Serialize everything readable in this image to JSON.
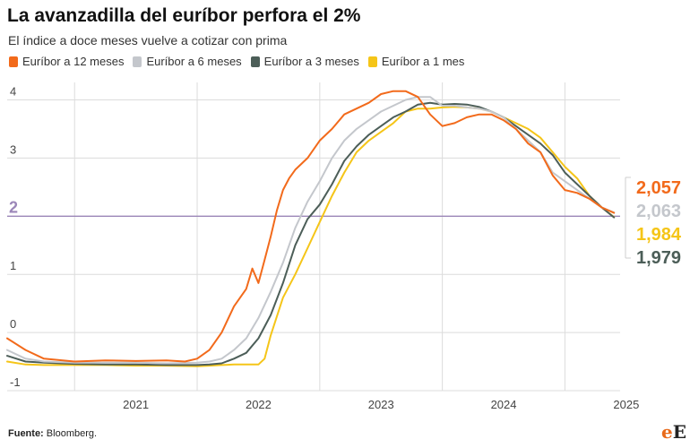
{
  "header": {
    "title": "La avanzadilla del euríbor perfora el 2%",
    "subtitle": "El índice a doce meses vuelve a cotizar con prima"
  },
  "footer": {
    "source_label": "Fuente:",
    "source_value": "Bloomberg.",
    "logo_e": "e",
    "logo_E": "E"
  },
  "colors": {
    "12m": "#f26a1b",
    "6m": "#c4c7cc",
    "3m": "#4c5e58",
    "1m": "#f5c518",
    "reference": "#9b86b8",
    "grid": "#dcdcdc"
  },
  "chart_data": {
    "type": "line",
    "title": "La avanzadilla del euríbor perfora el 2%",
    "subtitle": "El índice a doce meses vuelve a cotizar con prima",
    "xlabel": "",
    "ylabel": "",
    "xlim": [
      2020.45,
      2025.45
    ],
    "ylim": [
      -1,
      4.3
    ],
    "x_ticks": [
      "2021",
      "2022",
      "2023",
      "2024",
      "2025"
    ],
    "y_ticks": [
      "-1",
      "0",
      "1",
      "3",
      "4"
    ],
    "grid": true,
    "legend": "top-left",
    "reference_line": {
      "value": 2,
      "label": "2"
    },
    "end_labels": [
      {
        "series": "Euríbor a 12 meses",
        "label": "2,057"
      },
      {
        "series": "Euríbor a 6 meses",
        "label": "2,063"
      },
      {
        "series": "Euríbor a 1 mes",
        "label": "1,984"
      },
      {
        "series": "Euríbor a 3 meses",
        "label": "1,979"
      }
    ],
    "series": [
      {
        "name": "Euríbor a 12 meses",
        "key": "12m",
        "x": [
          2020.45,
          2020.6,
          2020.75,
          2021.0,
          2021.25,
          2021.5,
          2021.75,
          2021.9,
          2022.0,
          2022.1,
          2022.2,
          2022.3,
          2022.4,
          2022.45,
          2022.5,
          2022.55,
          2022.6,
          2022.65,
          2022.7,
          2022.75,
          2022.8,
          2022.9,
          2023.0,
          2023.1,
          2023.2,
          2023.3,
          2023.4,
          2023.5,
          2023.6,
          2023.7,
          2023.8,
          2023.9,
          2024.0,
          2024.1,
          2024.2,
          2024.3,
          2024.4,
          2024.5,
          2024.6,
          2024.7,
          2024.8,
          2024.9,
          2025.0,
          2025.1,
          2025.2,
          2025.3,
          2025.4
        ],
        "y": [
          -0.1,
          -0.3,
          -0.45,
          -0.5,
          -0.48,
          -0.49,
          -0.48,
          -0.5,
          -0.45,
          -0.3,
          0.0,
          0.45,
          0.75,
          1.1,
          0.85,
          1.25,
          1.65,
          2.1,
          2.45,
          2.65,
          2.8,
          3.0,
          3.3,
          3.5,
          3.75,
          3.85,
          3.95,
          4.1,
          4.15,
          4.15,
          4.05,
          3.75,
          3.55,
          3.6,
          3.7,
          3.75,
          3.75,
          3.65,
          3.5,
          3.25,
          3.1,
          2.7,
          2.45,
          2.4,
          2.3,
          2.15,
          2.057
        ]
      },
      {
        "name": "Euríbor a 6 meses",
        "key": "6m",
        "x": [
          2020.45,
          2020.6,
          2020.75,
          2021.0,
          2021.25,
          2021.5,
          2021.75,
          2022.0,
          2022.1,
          2022.2,
          2022.3,
          2022.4,
          2022.5,
          2022.6,
          2022.7,
          2022.8,
          2022.9,
          2023.0,
          2023.1,
          2023.2,
          2023.3,
          2023.4,
          2023.5,
          2023.6,
          2023.7,
          2023.8,
          2023.9,
          2024.0,
          2024.1,
          2024.2,
          2024.3,
          2024.4,
          2024.5,
          2024.6,
          2024.7,
          2024.8,
          2024.9,
          2025.0,
          2025.1,
          2025.2,
          2025.3,
          2025.4
        ],
        "y": [
          -0.3,
          -0.45,
          -0.5,
          -0.52,
          -0.52,
          -0.52,
          -0.53,
          -0.52,
          -0.5,
          -0.45,
          -0.3,
          -0.1,
          0.25,
          0.7,
          1.2,
          1.8,
          2.25,
          2.6,
          3.0,
          3.3,
          3.5,
          3.65,
          3.8,
          3.9,
          4.0,
          4.05,
          4.05,
          3.9,
          3.9,
          3.87,
          3.85,
          3.8,
          3.7,
          3.5,
          3.3,
          3.1,
          2.75,
          2.6,
          2.45,
          2.3,
          2.15,
          2.063
        ]
      },
      {
        "name": "Euríbor a 3 meses",
        "key": "3m",
        "x": [
          2020.45,
          2020.6,
          2020.75,
          2021.0,
          2021.25,
          2021.5,
          2021.75,
          2022.0,
          2022.1,
          2022.2,
          2022.3,
          2022.4,
          2022.5,
          2022.6,
          2022.7,
          2022.8,
          2022.9,
          2023.0,
          2023.1,
          2023.2,
          2023.3,
          2023.4,
          2023.5,
          2023.6,
          2023.7,
          2023.8,
          2023.9,
          2024.0,
          2024.1,
          2024.2,
          2024.3,
          2024.4,
          2024.5,
          2024.6,
          2024.7,
          2024.8,
          2024.9,
          2025.0,
          2025.1,
          2025.2,
          2025.3,
          2025.4
        ],
        "y": [
          -0.4,
          -0.5,
          -0.52,
          -0.54,
          -0.55,
          -0.55,
          -0.56,
          -0.56,
          -0.55,
          -0.53,
          -0.45,
          -0.35,
          -0.1,
          0.3,
          0.85,
          1.5,
          1.95,
          2.2,
          2.55,
          2.95,
          3.2,
          3.4,
          3.55,
          3.7,
          3.8,
          3.92,
          3.95,
          3.92,
          3.93,
          3.92,
          3.88,
          3.8,
          3.7,
          3.55,
          3.4,
          3.25,
          3.05,
          2.75,
          2.55,
          2.35,
          2.15,
          1.979
        ]
      },
      {
        "name": "Euríbor a 1 mes",
        "key": "1m",
        "x": [
          2020.45,
          2020.6,
          2020.75,
          2021.0,
          2021.25,
          2021.5,
          2021.75,
          2022.0,
          2022.1,
          2022.2,
          2022.3,
          2022.4,
          2022.5,
          2022.55,
          2022.6,
          2022.7,
          2022.8,
          2022.9,
          2023.0,
          2023.1,
          2023.2,
          2023.3,
          2023.4,
          2023.5,
          2023.6,
          2023.7,
          2023.8,
          2023.9,
          2024.0,
          2024.1,
          2024.2,
          2024.3,
          2024.4,
          2024.5,
          2024.6,
          2024.7,
          2024.8,
          2024.9,
          2025.0,
          2025.1,
          2025.2,
          2025.3,
          2025.4
        ],
        "y": [
          -0.5,
          -0.55,
          -0.56,
          -0.56,
          -0.56,
          -0.57,
          -0.57,
          -0.58,
          -0.57,
          -0.56,
          -0.55,
          -0.55,
          -0.55,
          -0.45,
          -0.05,
          0.6,
          1.0,
          1.45,
          1.9,
          2.35,
          2.75,
          3.1,
          3.3,
          3.45,
          3.6,
          3.8,
          3.85,
          3.85,
          3.87,
          3.88,
          3.87,
          3.85,
          3.8,
          3.7,
          3.6,
          3.5,
          3.35,
          3.1,
          2.85,
          2.65,
          2.35,
          2.15,
          1.984
        ]
      }
    ]
  }
}
